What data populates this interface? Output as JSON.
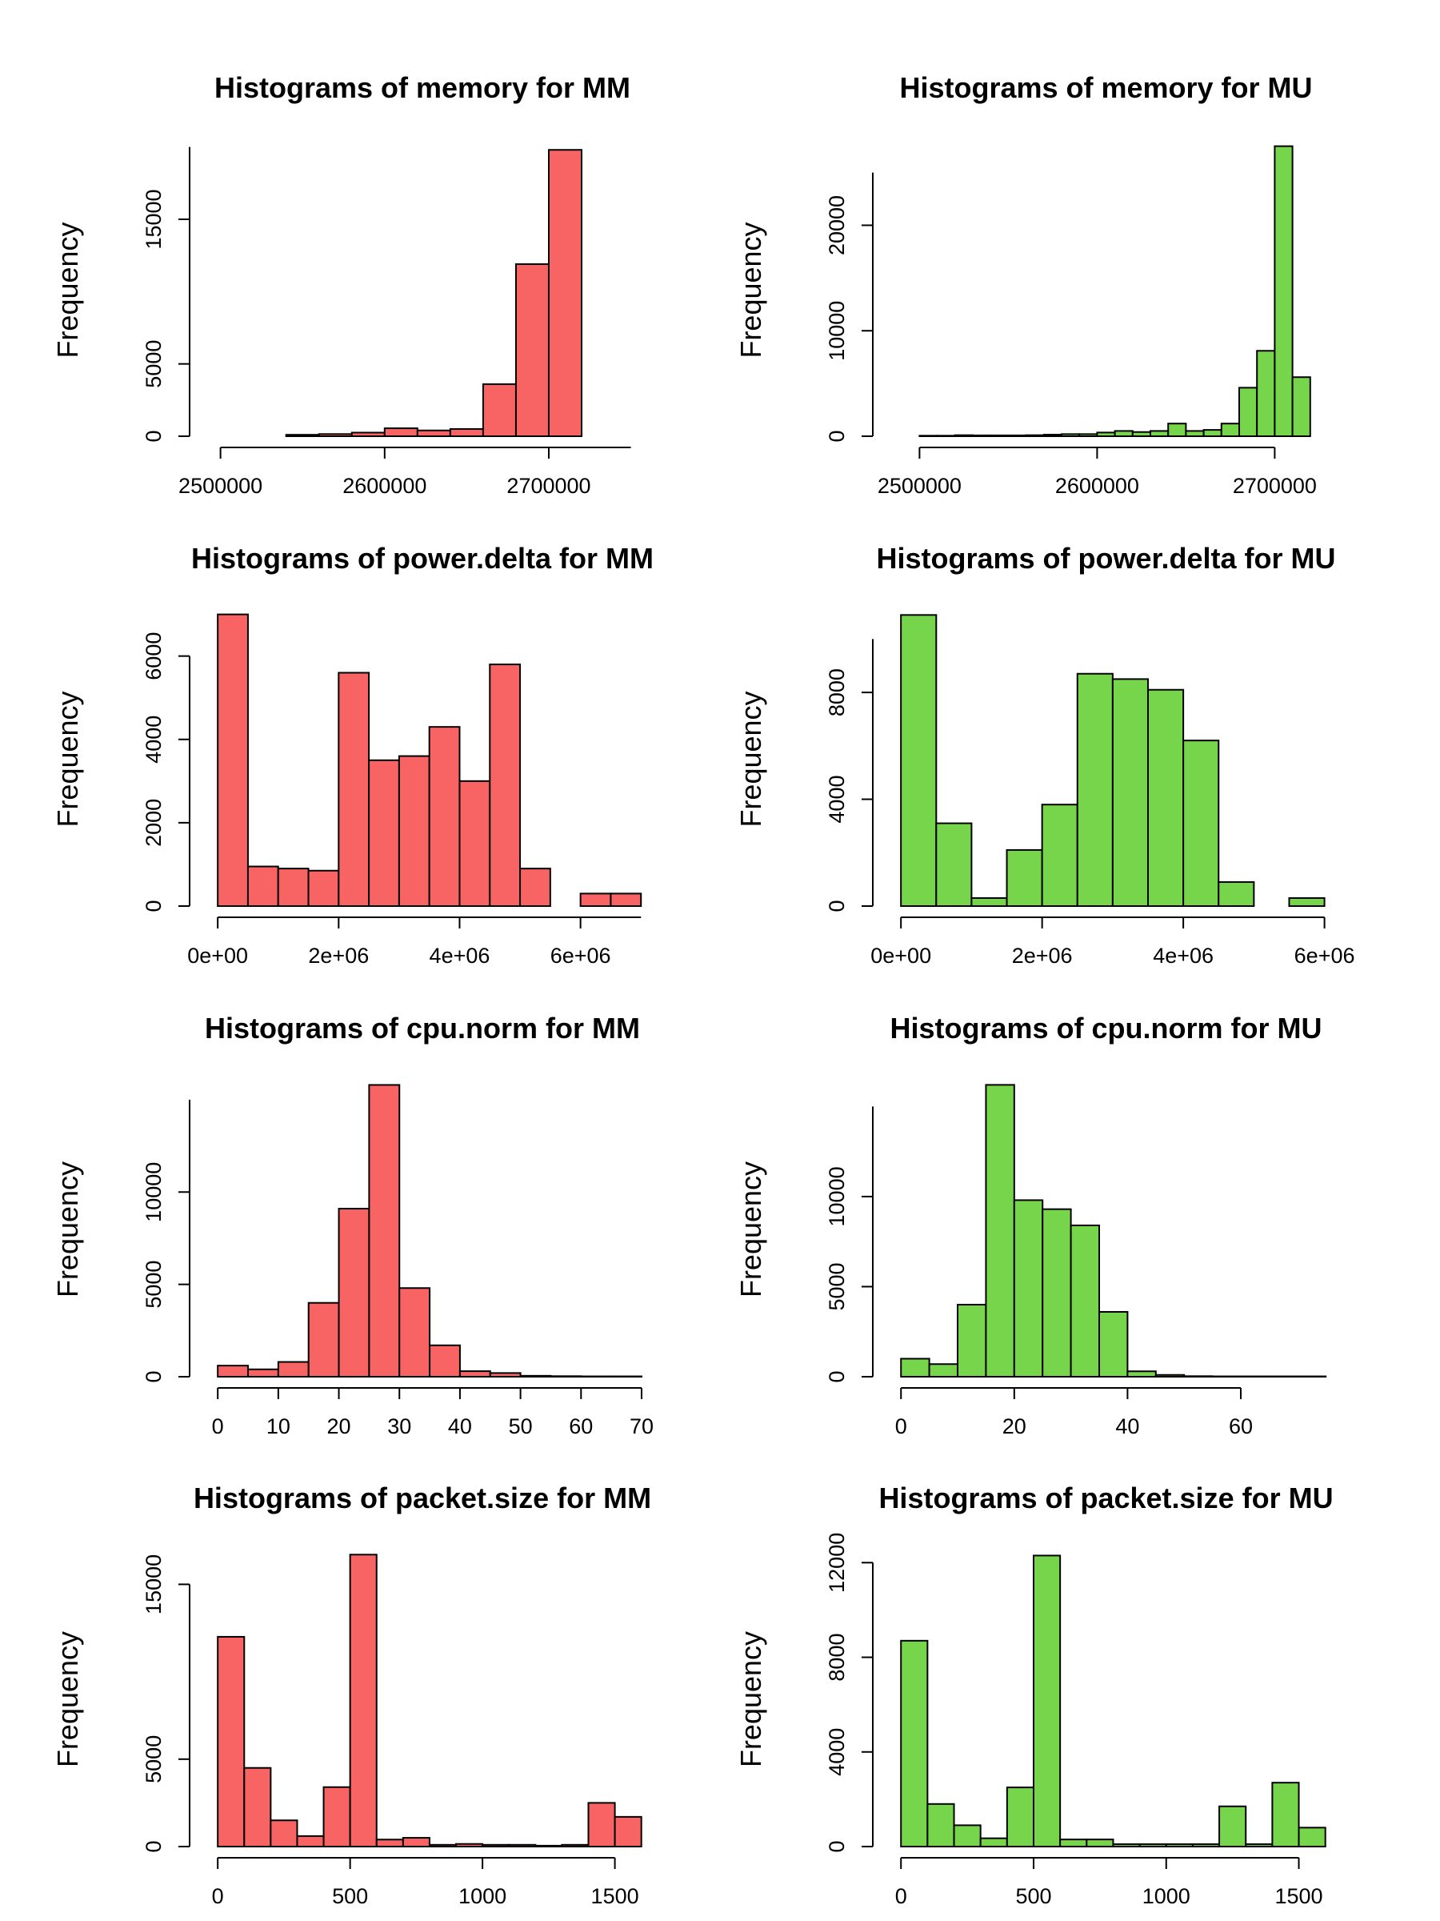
{
  "colors": {
    "MM": "#f86464",
    "MU": "#77d54b",
    "stroke": "#000000"
  },
  "chart_data": [
    {
      "type": "bar",
      "title": "Histograms of memory for MM",
      "ylabel": "Frequency",
      "xlabel": "",
      "bin_edges": [
        2540000,
        2560000,
        2580000,
        2600000,
        2620000,
        2640000,
        2660000,
        2680000,
        2700000,
        2720000
      ],
      "values": [
        100,
        150,
        250,
        550,
        400,
        500,
        3600,
        11900,
        19800
      ],
      "xlim": [
        2488000,
        2758000
      ],
      "ylim": [
        0,
        20200
      ],
      "xticks": [
        2500000,
        2600000,
        2700000
      ],
      "xtick_labels": [
        "2500000",
        "2600000",
        "2700000"
      ],
      "xaxis_range": [
        2500000,
        2750000
      ],
      "yticks": [
        0,
        5000,
        15000
      ],
      "ytick_labels": [
        "0",
        "5000",
        "15000"
      ],
      "yaxis_range": [
        0,
        20000
      ]
    },
    {
      "type": "bar",
      "title": "Histograms of memory for MU",
      "ylabel": "Frequency",
      "xlabel": "",
      "bin_edges": [
        2500000,
        2510000,
        2520000,
        2530000,
        2540000,
        2550000,
        2560000,
        2570000,
        2580000,
        2590000,
        2600000,
        2610000,
        2620000,
        2630000,
        2640000,
        2650000,
        2660000,
        2670000,
        2680000,
        2690000,
        2700000,
        2710000,
        2720000
      ],
      "values": [
        50,
        50,
        100,
        80,
        80,
        80,
        100,
        150,
        200,
        200,
        350,
        500,
        400,
        500,
        1200,
        500,
        600,
        1200,
        4600,
        8100,
        27500,
        5600
      ],
      "xlim": [
        2480000,
        2730000
      ],
      "ylim": [
        0,
        27700
      ],
      "xticks": [
        2500000,
        2600000,
        2700000
      ],
      "xtick_labels": [
        "2500000",
        "2600000",
        "2700000"
      ],
      "xaxis_range": [
        2500000,
        2700000
      ],
      "yticks": [
        0,
        10000,
        20000
      ],
      "ytick_labels": [
        "0",
        "10000",
        "20000"
      ],
      "yaxis_range": [
        0,
        25000
      ]
    },
    {
      "type": "bar",
      "title": "Histograms of power.delta for MM",
      "ylabel": "Frequency",
      "xlabel": "",
      "bin_edges": [
        0,
        500000,
        1000000,
        1500000,
        2000000,
        2500000,
        3000000,
        3500000,
        4000000,
        4500000,
        5000000,
        5500000,
        6000000,
        6500000,
        7000000
      ],
      "values": [
        7000,
        950,
        900,
        850,
        5600,
        3500,
        3600,
        4300,
        3000,
        5800,
        900,
        0,
        300,
        300
      ],
      "xlim": [
        -280000,
        7050000
      ],
      "ylim": [
        0,
        7050
      ],
      "xticks": [
        0,
        2000000,
        4000000,
        6000000
      ],
      "xtick_labels": [
        "0e+00",
        "2e+06",
        "4e+06",
        "6e+06"
      ],
      "xaxis_range": [
        0,
        7000000
      ],
      "yticks": [
        0,
        2000,
        4000,
        6000
      ],
      "ytick_labels": [
        "0",
        "2000",
        "4000",
        "6000"
      ],
      "yaxis_range": [
        0,
        6000
      ]
    },
    {
      "type": "bar",
      "title": "Histograms of power.delta for MU",
      "ylabel": "Frequency",
      "xlabel": "",
      "bin_edges": [
        0,
        500000,
        1000000,
        1500000,
        2000000,
        2500000,
        3000000,
        3500000,
        4000000,
        4500000,
        5000000,
        5500000,
        6000000
      ],
      "values": [
        10900,
        3100,
        300,
        2100,
        3800,
        8700,
        8500,
        8100,
        6200,
        900,
        0,
        300
      ],
      "xlim": [
        -240000,
        6050000
      ],
      "ylim": [
        0,
        11000
      ],
      "xticks": [
        0,
        2000000,
        4000000,
        6000000
      ],
      "xtick_labels": [
        "0e+00",
        "2e+06",
        "4e+06",
        "6e+06"
      ],
      "xaxis_range": [
        0,
        6000000
      ],
      "yticks": [
        0,
        4000,
        8000
      ],
      "ytick_labels": [
        "0",
        "4000",
        "8000"
      ],
      "yaxis_range": [
        0,
        10000
      ]
    },
    {
      "type": "bar",
      "title": "Histograms of cpu.norm for MM",
      "ylabel": "Frequency",
      "xlabel": "",
      "bin_edges": [
        0,
        5,
        10,
        15,
        20,
        25,
        30,
        35,
        40,
        45,
        50,
        55,
        60,
        65,
        70
      ],
      "values": [
        600,
        400,
        800,
        4000,
        9100,
        15800,
        4800,
        1700,
        300,
        200,
        50,
        30,
        20,
        20
      ],
      "xlim": [
        -2.8,
        70.4
      ],
      "ylim": [
        0,
        15950
      ],
      "xticks": [
        0,
        10,
        20,
        30,
        40,
        50,
        60,
        70
      ],
      "xtick_labels": [
        "0",
        "10",
        "20",
        "30",
        "40",
        "50",
        "60",
        "70"
      ],
      "xaxis_range": [
        0,
        70
      ],
      "yticks": [
        0,
        5000,
        10000
      ],
      "ytick_labels": [
        "0",
        "5000",
        "10000"
      ],
      "yaxis_range": [
        0,
        15000
      ]
    },
    {
      "type": "bar",
      "title": "Histograms of cpu.norm for MU",
      "ylabel": "Frequency",
      "xlabel": "",
      "bin_edges": [
        0,
        5,
        10,
        15,
        20,
        25,
        30,
        35,
        40,
        45,
        50,
        55,
        60,
        65,
        70,
        75
      ],
      "values": [
        1000,
        700,
        4000,
        16200,
        9800,
        9300,
        8400,
        3600,
        300,
        100,
        30,
        20,
        20,
        20,
        20
      ],
      "xlim": [
        -3,
        75.4
      ],
      "ylim": [
        0,
        16350
      ],
      "xticks": [
        0,
        20,
        40,
        60
      ],
      "xtick_labels": [
        "0",
        "20",
        "40",
        "60"
      ],
      "xaxis_range": [
        0,
        60
      ],
      "yticks": [
        0,
        5000,
        10000
      ],
      "ytick_labels": [
        "0",
        "5000",
        "10000"
      ],
      "yaxis_range": [
        0,
        15000
      ]
    },
    {
      "type": "bar",
      "title": "Histograms of packet.size for MM",
      "ylabel": "Frequency",
      "xlabel": "",
      "bin_edges": [
        0,
        100,
        200,
        300,
        400,
        500,
        600,
        700,
        800,
        900,
        1000,
        1100,
        1200,
        1300,
        1400,
        1500,
        1600
      ],
      "values": [
        12000,
        4500,
        1500,
        600,
        3400,
        16700,
        400,
        500,
        100,
        150,
        100,
        100,
        50,
        100,
        2500,
        1700
      ],
      "xlim": [
        -64,
        1610
      ],
      "ylim": [
        0,
        16850
      ],
      "xticks": [
        0,
        500,
        1000,
        1500
      ],
      "xtick_labels": [
        "0",
        "500",
        "1000",
        "1500"
      ],
      "xaxis_range": [
        0,
        1500
      ],
      "yticks": [
        0,
        5000,
        15000
      ],
      "ytick_labels": [
        "0",
        "5000",
        "15000"
      ],
      "yaxis_range": [
        0,
        15000
      ]
    },
    {
      "type": "bar",
      "title": "Histograms of packet.size for MU",
      "ylabel": "Frequency",
      "xlabel": "",
      "bin_edges": [
        0,
        100,
        200,
        300,
        400,
        500,
        600,
        700,
        800,
        900,
        1000,
        1100,
        1200,
        1300,
        1400,
        1500,
        1600
      ],
      "values": [
        8700,
        1800,
        900,
        350,
        2500,
        12300,
        300,
        300,
        100,
        100,
        100,
        100,
        1700,
        100,
        2700,
        800
      ],
      "xlim": [
        -64,
        1610
      ],
      "ylim": [
        0,
        12450
      ],
      "xticks": [
        0,
        500,
        1000,
        1500
      ],
      "xtick_labels": [
        "0",
        "500",
        "1000",
        "1500"
      ],
      "xaxis_range": [
        0,
        1500
      ],
      "yticks": [
        0,
        4000,
        8000,
        12000
      ],
      "ytick_labels": [
        "0",
        "4000",
        "8000",
        "12000"
      ],
      "yaxis_range": [
        0,
        12000
      ]
    }
  ]
}
